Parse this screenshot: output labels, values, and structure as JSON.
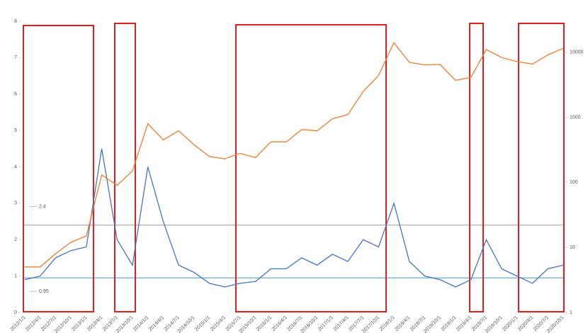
{
  "chart_data": {
    "type": "line",
    "categories": [
      "2012/1/1",
      "2012/4/1",
      "2012/7/1",
      "2012/10/1",
      "2013/1/1",
      "2013/4/1",
      "2013/7/1",
      "2013/10/1",
      "2014/1/1",
      "2014/4/1",
      "2014/7/1",
      "2014/10/1",
      "2015/1/1",
      "2015/4/1",
      "2015/7/1",
      "2015/10/1",
      "2016/1/1",
      "2016/4/1",
      "2016/7/1",
      "2016/10/1",
      "2017/1/1",
      "2017/4/1",
      "2017/7/1",
      "2017/10/1",
      "2018/1/1",
      "2018/4/1",
      "2018/7/1",
      "2018/10/1",
      "2019/1/1",
      "2019/4/1",
      "2019/7/1",
      "2019/10/1",
      "2020/1/1",
      "2020/4/1",
      "2020/7/1",
      "2020/10/1"
    ],
    "series": [
      {
        "color": "#4472c4",
        "values": [
          0.9,
          1.0,
          1.5,
          1.7,
          1.8,
          4.5,
          2.0,
          1.3,
          4.0,
          2.5,
          1.3,
          1.1,
          0.8,
          0.7,
          0.8,
          0.85,
          1.2,
          1.2,
          1.5,
          1.3,
          1.6,
          1.4,
          2.0,
          1.8,
          3.0,
          1.4,
          1.0,
          0.9,
          0.7,
          0.9,
          2.0,
          1.2,
          1.0,
          0.8,
          1.2,
          1.3
        ]
      },
      {
        "color": "#ed7d31",
        "axis": "y2",
        "values": [
          5,
          5,
          8,
          12,
          15,
          130,
          90,
          150,
          800,
          450,
          620,
          380,
          250,
          230,
          280,
          240,
          420,
          420,
          650,
          620,
          950,
          1100,
          2500,
          4400,
          14000,
          7000,
          6400,
          6500,
          3700,
          4100,
          11000,
          8300,
          7200,
          6600,
          9100,
          11500
        ]
      }
    ],
    "ylim": [
      0,
      8
    ],
    "yticks": [
      0,
      1,
      2,
      3,
      4,
      5,
      6,
      7,
      8
    ],
    "y2lim": [
      1,
      30000
    ],
    "y2ticks": [
      1,
      10,
      100,
      1000,
      10000
    ],
    "y2log": true,
    "reference_lines": [
      {
        "value": 2.4,
        "color": "#a6a6a6"
      },
      {
        "value": 0.95,
        "color": "#5ba3c9"
      }
    ]
  }
}
